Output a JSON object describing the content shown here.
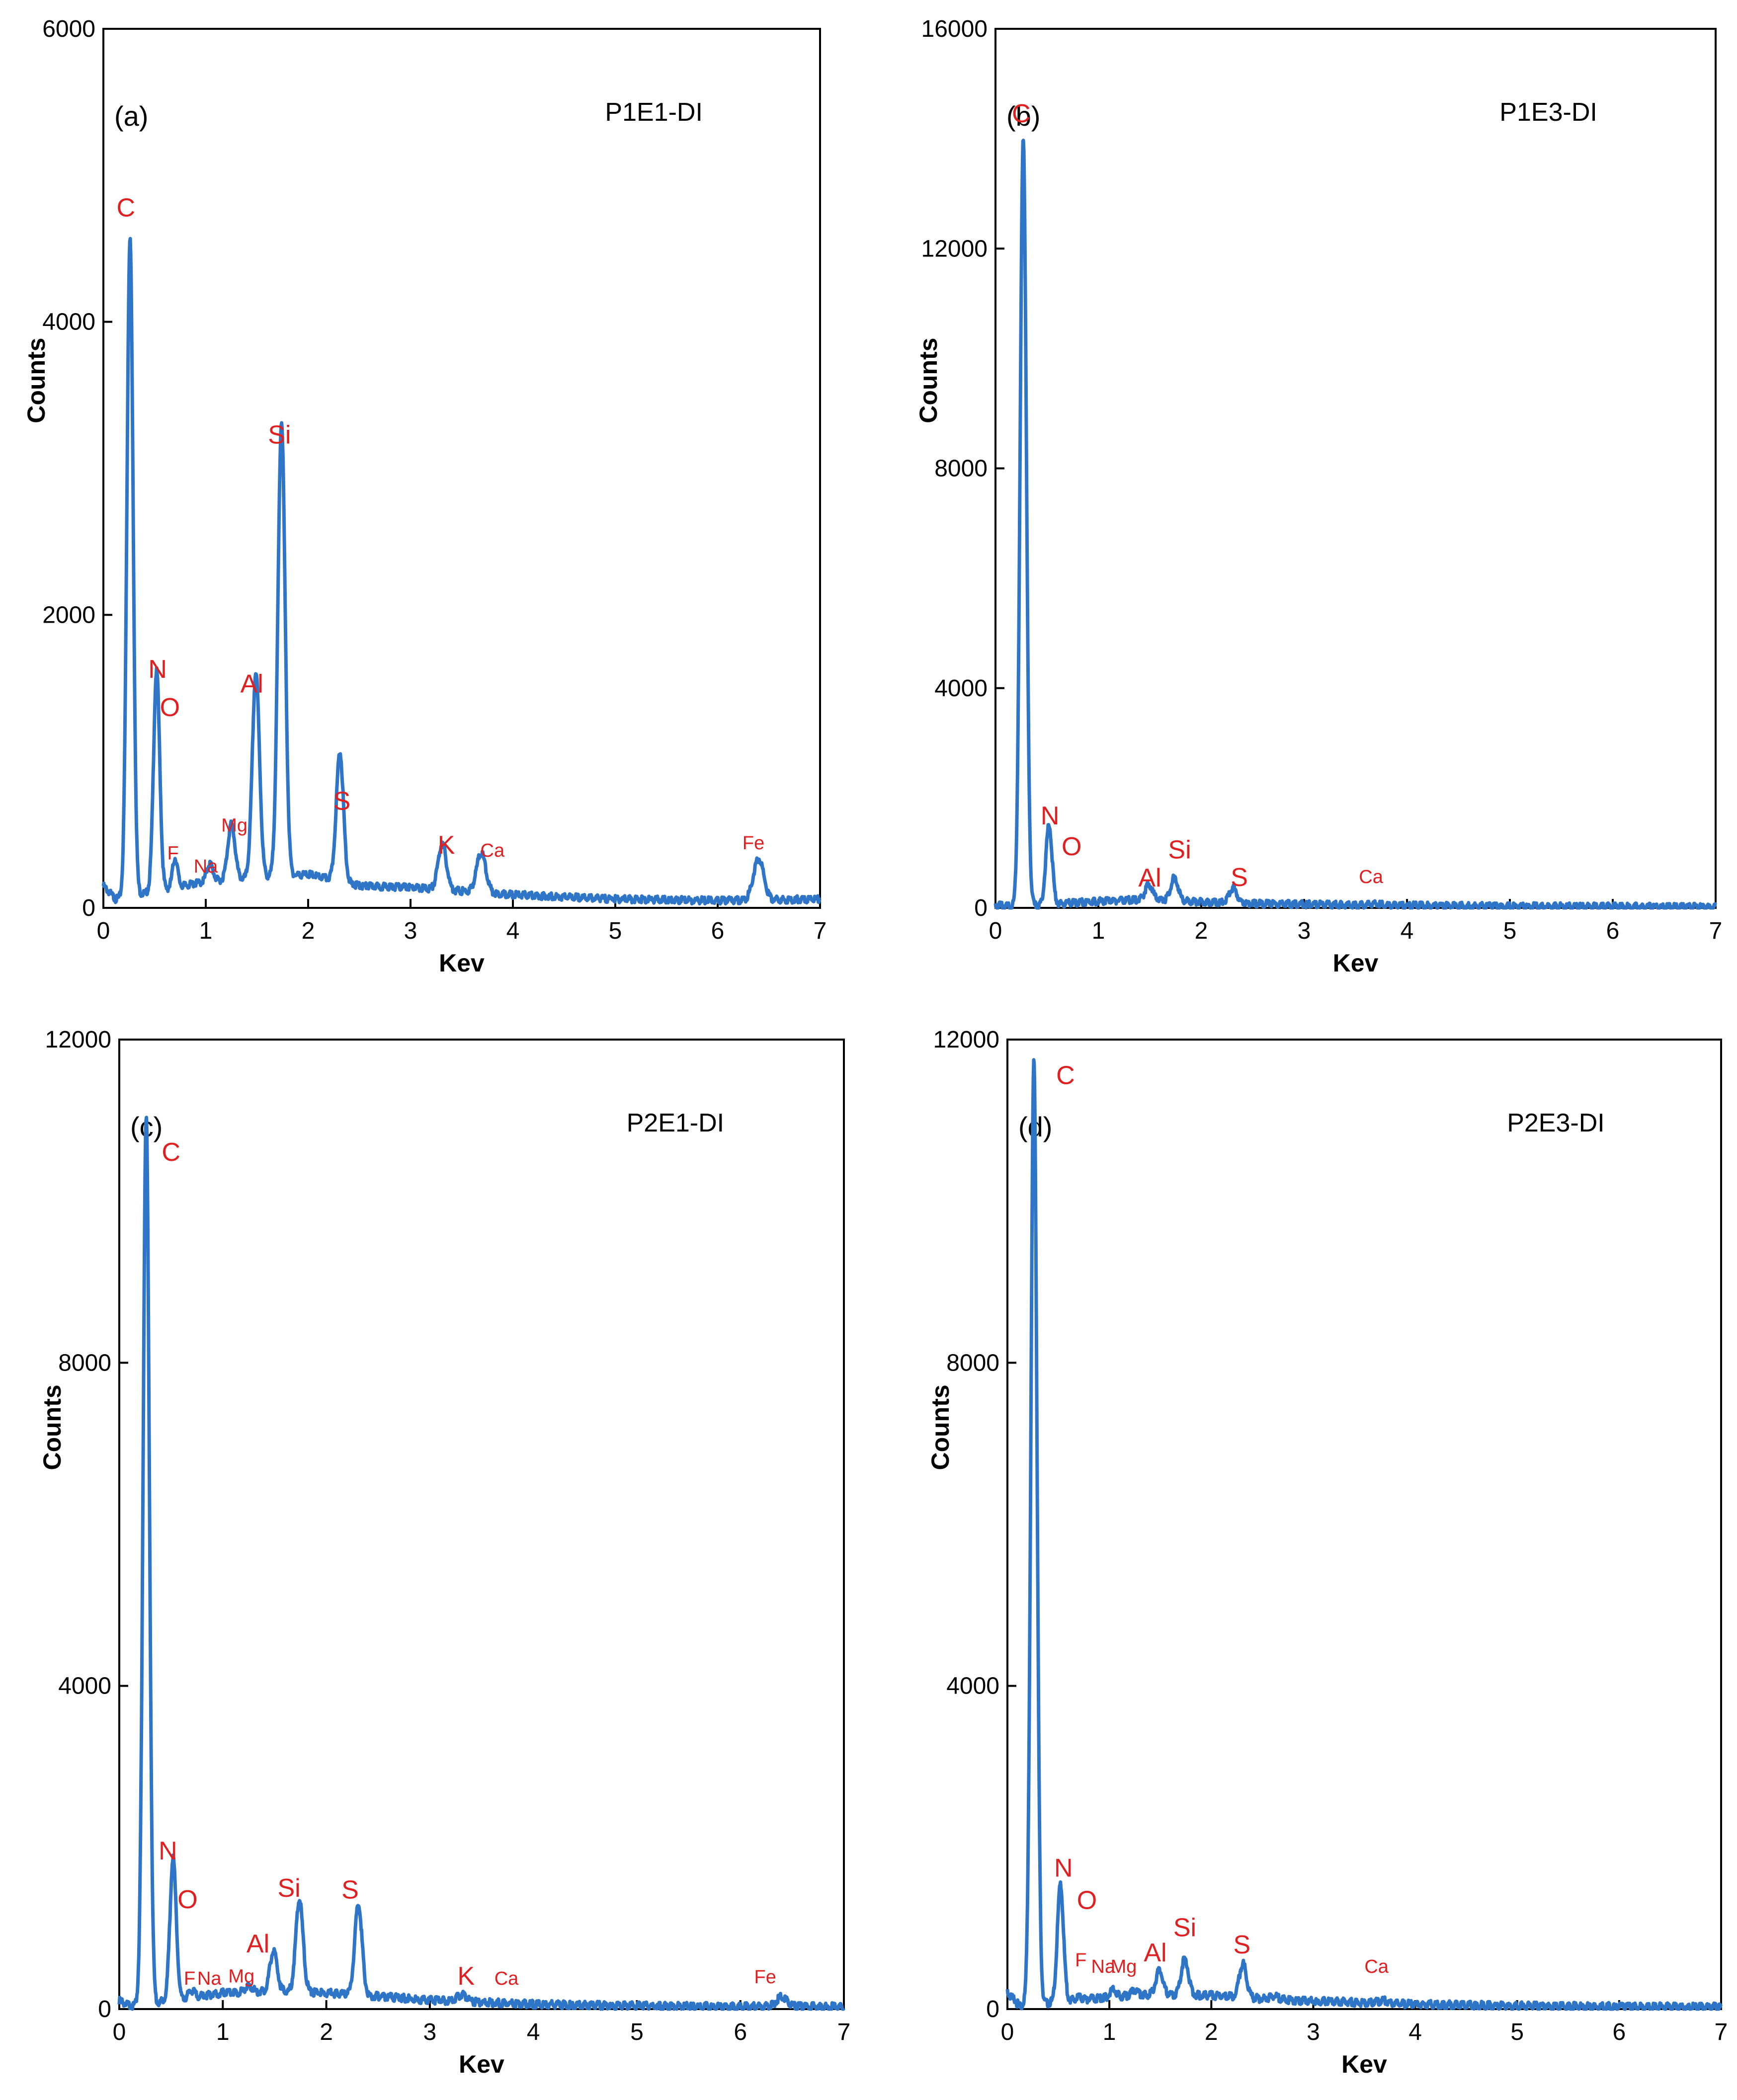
{
  "figure": {
    "line_color": "#2e75c7",
    "annotation_color": "#e02020",
    "axis_color": "#000000"
  },
  "chart_data": [
    {
      "type": "line",
      "panel": "(a)",
      "sample": "P1E1-DI",
      "xlabel": "Kev",
      "ylabel": "Counts",
      "xlim": [
        0,
        7
      ],
      "ylim": [
        0,
        6000
      ],
      "xticks": [
        "0",
        "1",
        "2",
        "3",
        "4",
        "5",
        "6",
        "7"
      ],
      "yticks": [
        "0",
        "2000",
        "4000",
        "6000"
      ],
      "ytick_values": [
        0,
        2000,
        4000,
        6000
      ],
      "baseline": [
        [
          0,
          150
        ],
        [
          0.12,
          60
        ],
        [
          1.0,
          180
        ],
        [
          1.4,
          200
        ],
        [
          2.0,
          230
        ],
        [
          2.5,
          150
        ],
        [
          3.0,
          140
        ],
        [
          4.0,
          90
        ],
        [
          5.0,
          60
        ],
        [
          6.0,
          50
        ],
        [
          7.0,
          60
        ]
      ],
      "peaks": [
        {
          "x": 0.26,
          "y": 4500,
          "w": 0.03,
          "label": "C",
          "size": "large"
        },
        {
          "x": 0.52,
          "y": 1500,
          "w": 0.03,
          "label": "N",
          "size": "large"
        },
        {
          "x": 0.7,
          "y": 200,
          "w": 0.025,
          "label": "F",
          "size": "small"
        },
        {
          "x": 1.04,
          "y": 120,
          "w": 0.03,
          "label": "Na",
          "size": "small"
        },
        {
          "x": 1.25,
          "y": 380,
          "w": 0.035,
          "label": "Mg",
          "size": "small"
        },
        {
          "x": 1.49,
          "y": 1400,
          "w": 0.035,
          "label": "Al",
          "size": "large"
        },
        {
          "x": 1.74,
          "y": 3100,
          "w": 0.035,
          "label": "Si",
          "size": "large"
        },
        {
          "x": 2.31,
          "y": 880,
          "w": 0.035,
          "label": "S",
          "size": "large"
        },
        {
          "x": 3.31,
          "y": 310,
          "w": 0.04,
          "label": "K",
          "size": "large"
        },
        {
          "x": 3.69,
          "y": 270,
          "w": 0.045,
          "label": "Ca",
          "size": "small"
        },
        {
          "x": 6.4,
          "y": 280,
          "w": 0.05,
          "label": "Fe",
          "size": "small"
        }
      ],
      "annotations": [
        {
          "text": "C",
          "x": 0.22,
          "y": 4720,
          "size": "large"
        },
        {
          "text": "N",
          "x": 0.53,
          "y": 1570,
          "size": "large"
        },
        {
          "text": "O",
          "x": 0.65,
          "y": 1310,
          "size": "large"
        },
        {
          "text": "F",
          "x": 0.68,
          "y": 330,
          "size": "small"
        },
        {
          "text": "Na",
          "x": 1.0,
          "y": 240,
          "size": "small"
        },
        {
          "text": "Mg",
          "x": 1.28,
          "y": 520,
          "size": "small"
        },
        {
          "text": "Al",
          "x": 1.45,
          "y": 1470,
          "size": "large"
        },
        {
          "text": "Si",
          "x": 1.72,
          "y": 3170,
          "size": "large"
        },
        {
          "text": "S",
          "x": 2.33,
          "y": 670,
          "size": "large"
        },
        {
          "text": "K",
          "x": 3.35,
          "y": 370,
          "size": "large"
        },
        {
          "text": "Ca",
          "x": 3.8,
          "y": 350,
          "size": "small"
        },
        {
          "text": "Fe",
          "x": 6.35,
          "y": 400,
          "size": "small"
        }
      ]
    },
    {
      "type": "line",
      "panel": "(b)",
      "sample": "P1E3-DI",
      "xlabel": "Kev",
      "ylabel": "Counts",
      "xlim": [
        0,
        7
      ],
      "ylim": [
        0,
        16000
      ],
      "xticks": [
        "0",
        "1",
        "2",
        "3",
        "4",
        "5",
        "6",
        "7"
      ],
      "yticks": [
        "0",
        "4000",
        "8000",
        "12000",
        "16000"
      ],
      "ytick_values": [
        0,
        4000,
        8000,
        12000,
        16000
      ],
      "baseline": [
        [
          0,
          50
        ],
        [
          0.15,
          20
        ],
        [
          1.0,
          120
        ],
        [
          1.5,
          160
        ],
        [
          2.0,
          110
        ],
        [
          2.6,
          80
        ],
        [
          3.5,
          50
        ],
        [
          5.0,
          30
        ],
        [
          7.0,
          20
        ]
      ],
      "peaks": [
        {
          "x": 0.27,
          "y": 14000,
          "w": 0.03,
          "label": "C",
          "size": "large"
        },
        {
          "x": 0.52,
          "y": 1450,
          "w": 0.03,
          "label": "N",
          "size": "large"
        },
        {
          "x": 1.49,
          "y": 260,
          "w": 0.035,
          "label": "Al",
          "size": "large"
        },
        {
          "x": 1.74,
          "y": 420,
          "w": 0.035,
          "label": "Si",
          "size": "large"
        },
        {
          "x": 2.31,
          "y": 270,
          "w": 0.035,
          "label": "S",
          "size": "large"
        },
        {
          "x": 3.69,
          "y": 30,
          "w": 0.05,
          "label": "Ca",
          "size": "small"
        }
      ],
      "annotations": [
        {
          "text": "C",
          "x": 0.25,
          "y": 14300,
          "size": "large"
        },
        {
          "text": "N",
          "x": 0.53,
          "y": 1520,
          "size": "large"
        },
        {
          "text": "O",
          "x": 0.74,
          "y": 960,
          "size": "large"
        },
        {
          "text": "Al",
          "x": 1.5,
          "y": 390,
          "size": "large"
        },
        {
          "text": "Si",
          "x": 1.79,
          "y": 900,
          "size": "large"
        },
        {
          "text": "S",
          "x": 2.37,
          "y": 400,
          "size": "large"
        },
        {
          "text": "Ca",
          "x": 3.65,
          "y": 450,
          "size": "small"
        }
      ]
    },
    {
      "type": "line",
      "panel": "(c)",
      "sample": "P2E1-DI",
      "xlabel": "Kev",
      "ylabel": "Counts",
      "xlim": [
        0,
        7
      ],
      "ylim": [
        0,
        12000
      ],
      "xticks": [
        "0",
        "1",
        "2",
        "3",
        "4",
        "5",
        "6",
        "7"
      ],
      "yticks": [
        "0",
        "4000",
        "8000",
        "12000"
      ],
      "ytick_values": [
        0,
        4000,
        8000,
        12000
      ],
      "baseline": [
        [
          0,
          100
        ],
        [
          0.12,
          40
        ],
        [
          1.0,
          200
        ],
        [
          1.5,
          220
        ],
        [
          2.0,
          200
        ],
        [
          2.6,
          150
        ],
        [
          3.0,
          110
        ],
        [
          4.0,
          60
        ],
        [
          5.0,
          40
        ],
        [
          6.0,
          30
        ],
        [
          7.0,
          30
        ]
      ],
      "peaks": [
        {
          "x": 0.26,
          "y": 11000,
          "w": 0.03,
          "label": "C",
          "size": "large"
        },
        {
          "x": 0.52,
          "y": 1750,
          "w": 0.03,
          "label": "N",
          "size": "large"
        },
        {
          "x": 0.7,
          "y": 80,
          "w": 0.03,
          "label": "F",
          "size": "small"
        },
        {
          "x": 1.25,
          "y": 80,
          "w": 0.035,
          "label": "Mg",
          "size": "small"
        },
        {
          "x": 1.49,
          "y": 500,
          "w": 0.035,
          "label": "Al",
          "size": "large"
        },
        {
          "x": 1.74,
          "y": 1150,
          "w": 0.035,
          "label": "Si",
          "size": "large"
        },
        {
          "x": 2.31,
          "y": 1130,
          "w": 0.035,
          "label": "S",
          "size": "large"
        },
        {
          "x": 3.31,
          "y": 80,
          "w": 0.05,
          "label": "K",
          "size": "large"
        },
        {
          "x": 6.4,
          "y": 120,
          "w": 0.05,
          "label": "Fe",
          "size": "small"
        }
      ],
      "annotations": [
        {
          "text": "C",
          "x": 0.5,
          "y": 10500,
          "size": "large"
        },
        {
          "text": "N",
          "x": 0.47,
          "y": 1850,
          "size": "large"
        },
        {
          "text": "O",
          "x": 0.66,
          "y": 1250,
          "size": "large"
        },
        {
          "text": "F",
          "x": 0.68,
          "y": 300,
          "size": "small"
        },
        {
          "text": "Na",
          "x": 0.87,
          "y": 300,
          "size": "small"
        },
        {
          "text": "Mg",
          "x": 1.18,
          "y": 330,
          "size": "small"
        },
        {
          "text": "Al",
          "x": 1.34,
          "y": 700,
          "size": "large"
        },
        {
          "text": "Si",
          "x": 1.64,
          "y": 1390,
          "size": "large"
        },
        {
          "text": "S",
          "x": 2.23,
          "y": 1370,
          "size": "large"
        },
        {
          "text": "K",
          "x": 3.35,
          "y": 300,
          "size": "large"
        },
        {
          "text": "Ca",
          "x": 3.74,
          "y": 300,
          "size": "small"
        },
        {
          "text": "Fe",
          "x": 6.24,
          "y": 320,
          "size": "small"
        }
      ]
    },
    {
      "type": "line",
      "panel": "(d)",
      "sample": "P2E3-DI",
      "xlabel": "Kev",
      "ylabel": "Counts",
      "xlim": [
        0,
        7
      ],
      "ylim": [
        0,
        12000
      ],
      "xticks": [
        "0",
        "1",
        "2",
        "3",
        "4",
        "5",
        "6",
        "7"
      ],
      "yticks": [
        "0",
        "4000",
        "8000",
        "12000"
      ],
      "ytick_values": [
        0,
        4000,
        8000,
        12000
      ],
      "baseline": [
        [
          0,
          200
        ],
        [
          0.12,
          40
        ],
        [
          1.0,
          150
        ],
        [
          1.5,
          180
        ],
        [
          2.0,
          170
        ],
        [
          2.6,
          120
        ],
        [
          3.0,
          100
        ],
        [
          4.0,
          60
        ],
        [
          5.0,
          40
        ],
        [
          6.0,
          30
        ],
        [
          7.0,
          25
        ]
      ],
      "peaks": [
        {
          "x": 0.26,
          "y": 11700,
          "w": 0.03,
          "label": "C",
          "size": "large"
        },
        {
          "x": 0.52,
          "y": 1450,
          "w": 0.03,
          "label": "N",
          "size": "large"
        },
        {
          "x": 0.7,
          "y": 40,
          "w": 0.03,
          "label": "F",
          "size": "small"
        },
        {
          "x": 1.04,
          "y": 80,
          "w": 0.03,
          "label": "Na",
          "size": "small"
        },
        {
          "x": 1.25,
          "y": 60,
          "w": 0.035,
          "label": "Mg",
          "size": "small"
        },
        {
          "x": 1.49,
          "y": 300,
          "w": 0.035,
          "label": "Al",
          "size": "large"
        },
        {
          "x": 1.74,
          "y": 450,
          "w": 0.035,
          "label": "Si",
          "size": "large"
        },
        {
          "x": 2.31,
          "y": 420,
          "w": 0.035,
          "label": "S",
          "size": "large"
        },
        {
          "x": 2.62,
          "y": 40,
          "w": 0.04,
          "label": "",
          "size": "small"
        },
        {
          "x": 3.69,
          "y": 30,
          "w": 0.05,
          "label": "Ca",
          "size": "small"
        }
      ],
      "annotations": [
        {
          "text": "C",
          "x": 0.57,
          "y": 11450,
          "size": "large"
        },
        {
          "text": "N",
          "x": 0.55,
          "y": 1640,
          "size": "large"
        },
        {
          "text": "O",
          "x": 0.78,
          "y": 1240,
          "size": "large"
        },
        {
          "text": "F",
          "x": 0.72,
          "y": 530,
          "size": "small"
        },
        {
          "text": "Na",
          "x": 0.94,
          "y": 450,
          "size": "small"
        },
        {
          "text": "Mg",
          "x": 1.14,
          "y": 450,
          "size": "small"
        },
        {
          "text": "Al",
          "x": 1.45,
          "y": 590,
          "size": "large"
        },
        {
          "text": "Si",
          "x": 1.74,
          "y": 900,
          "size": "large"
        },
        {
          "text": "S",
          "x": 2.3,
          "y": 690,
          "size": "large"
        },
        {
          "text": "Ca",
          "x": 3.62,
          "y": 450,
          "size": "small"
        }
      ]
    }
  ]
}
